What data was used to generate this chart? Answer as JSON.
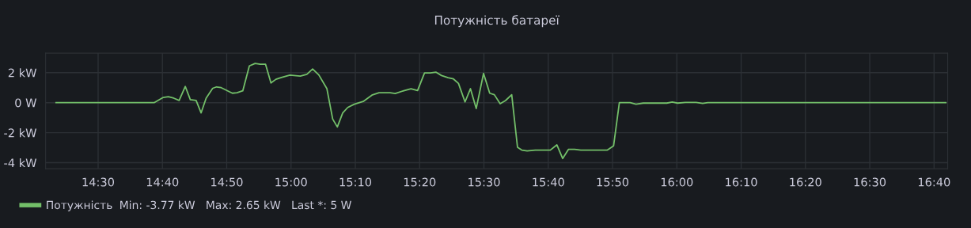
{
  "chart_data": {
    "type": "line",
    "title": "Потужність батареї",
    "x": [
      14.391,
      14.645,
      14.669,
      14.682,
      14.696,
      14.71,
      14.726,
      14.739,
      14.754,
      14.767,
      14.78,
      14.797,
      14.807,
      14.819,
      14.848,
      14.86,
      14.875,
      14.892,
      14.907,
      14.92,
      14.934,
      14.948,
      14.961,
      14.975,
      14.997,
      15.024,
      15.041,
      15.056,
      15.072,
      15.093,
      15.108,
      15.12,
      15.134,
      15.147,
      15.164,
      15.187,
      15.211,
      15.228,
      15.257,
      15.27,
      15.294,
      15.311,
      15.328,
      15.346,
      15.361,
      15.376,
      15.39,
      15.407,
      15.421,
      15.434,
      15.451,
      15.465,
      15.48,
      15.499,
      15.515,
      15.527,
      15.542,
      15.556,
      15.572,
      15.587,
      15.598,
      15.612,
      15.633,
      15.672,
      15.689,
      15.704,
      15.719,
      15.735,
      15.751,
      15.82,
      15.836,
      15.851,
      15.879,
      15.894,
      15.913,
      15.974,
      15.988,
      16.002,
      16.022,
      16.05,
      16.067,
      16.08,
      16.697
    ],
    "series": [
      {
        "name": "Потужність",
        "color": "#73bf69",
        "values": [
          0,
          0,
          0.35,
          0.4,
          0.3,
          0.15,
          1.08,
          0.2,
          0.15,
          -0.68,
          0.3,
          0.96,
          1.05,
          1.0,
          0.63,
          0.66,
          0.79,
          2.45,
          2.61,
          2.56,
          2.56,
          1.31,
          1.56,
          1.68,
          1.84,
          1.77,
          1.89,
          2.24,
          1.85,
          0.93,
          -1.09,
          -1.62,
          -0.68,
          -0.32,
          -0.1,
          0.08,
          0.52,
          0.66,
          0.66,
          0.61,
          0.81,
          0.93,
          0.81,
          1.98,
          1.98,
          2.03,
          1.81,
          1.66,
          1.58,
          1.28,
          0.05,
          0.93,
          -0.39,
          1.95,
          0.63,
          0.53,
          -0.07,
          0.14,
          0.53,
          -2.97,
          -3.16,
          -3.21,
          -3.16,
          -3.16,
          -2.81,
          -3.72,
          -3.11,
          -3.11,
          -3.16,
          -3.16,
          -2.88,
          0,
          0,
          -0.1,
          -0.03,
          -0.03,
          0.04,
          -0.03,
          0.02,
          0.02,
          -0.05,
          0,
          0.005
        ]
      }
    ],
    "xlim": [
      14.364,
      16.702
    ],
    "xticks": [
      {
        "value": 14.5,
        "label": "14:30"
      },
      {
        "value": 14.6667,
        "label": "14:40"
      },
      {
        "value": 14.8333,
        "label": "14:50"
      },
      {
        "value": 15,
        "label": "15:00"
      },
      {
        "value": 15.1667,
        "label": "15:10"
      },
      {
        "value": 15.3333,
        "label": "15:20"
      },
      {
        "value": 15.5,
        "label": "15:30"
      },
      {
        "value": 15.6667,
        "label": "15:40"
      },
      {
        "value": 15.8333,
        "label": "15:50"
      },
      {
        "value": 16,
        "label": "16:00"
      },
      {
        "value": 16.1667,
        "label": "16:10"
      },
      {
        "value": 16.3333,
        "label": "16:20"
      },
      {
        "value": 16.5,
        "label": "16:30"
      },
      {
        "value": 16.6667,
        "label": "16:40"
      }
    ],
    "ylim": [
      -4.4,
      3.3
    ],
    "yticks": [
      {
        "value": -4,
        "label": "-4 kW"
      },
      {
        "value": -2,
        "label": "-2 kW"
      },
      {
        "value": 0,
        "label": "0 W"
      },
      {
        "value": 2,
        "label": "2 kW"
      }
    ],
    "grid": true,
    "legend": "bottom left",
    "marker": "none",
    "line_style": "solid",
    "annotations": [
      "Min: -3.77 kW   Max: 2.65 kW   Last *: 5 W"
    ]
  }
}
